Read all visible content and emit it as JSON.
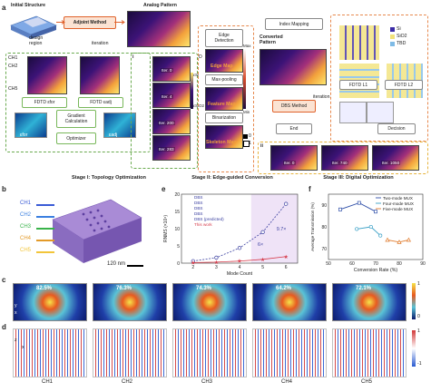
{
  "panel_a": {
    "letter": "a",
    "initial_structure": "Initial Structure",
    "design_region": "design\nregion",
    "adjoint_method": "Adjoint Method",
    "iteration": "iteration",
    "analog_pattern": "Analog Pattern",
    "ch_labels": [
      "CH1",
      "CH2",
      "CH5"
    ],
    "fdtd_for": "FDTD εfor",
    "fdtd_adj": "FDTD εadj",
    "gradient": "Gradient\nCalculation",
    "optimizer": "Optimizer",
    "eps_for": "εfor",
    "eps_adj": "εadj",
    "iter_labels": [
      "Iter. 0",
      "Iter. 4",
      "Iter. 200",
      "Iter. 283"
    ],
    "colorbar_top": "εSi",
    "colorbar_bot": "εSiO2",
    "edge_detection": "Edge\nDetection",
    "edge_map": "Edge Map",
    "max_pooling": "Max-pooling",
    "feature_map": "Feature Map",
    "binarization": "Binarization",
    "skeleton_map": "Skeleton Map",
    "max": "Max",
    "min": "Min",
    "d_label": "D",
    "bin_0": "0",
    "bin_1": "1",
    "index_mapping": "Index Mapping",
    "converted_pattern": "Converted\nPattern",
    "legend": [
      "Si",
      "SiO2",
      "TBD"
    ],
    "legend_colors": [
      "#3b2ba6",
      "#f2e27a",
      "#7fbbe6"
    ],
    "dbs_method": "DBS Method",
    "end": "End",
    "fdtd_l1": "FDTD L1",
    "fdtd_l2": "FDTD L2",
    "decision": "Decision",
    "sub_i": "i",
    "sub_ii": "ii",
    "iter_dbs": [
      "Iter. 0",
      "Iter. 740",
      "Iter. 1050"
    ],
    "stage1": "Stage I: Topology Optimization",
    "stage2": "Stage II: Edge-guided Conversion",
    "stage3": "Stage III: Digital Optimization"
  },
  "panel_b": {
    "letter": "b",
    "channels": [
      "CH1",
      "CH2",
      "CH3",
      "CH4",
      "CH5"
    ],
    "channel_colors": [
      "#3a5bd6",
      "#3a7fe0",
      "#39b34a",
      "#e39a28",
      "#f2c53a"
    ],
    "scale": "120 nm"
  },
  "panel_e": {
    "letter": "e",
    "chart_data": {
      "type": "scatter",
      "xlabel": "Mode Count",
      "ylabel": "RNMS (×10⁴)",
      "xlim": [
        1.5,
        6.5
      ],
      "ylim": [
        0,
        20
      ],
      "x_ticks": [
        "2",
        "3",
        "4",
        "5",
        "6"
      ],
      "y_ticks": [
        "0",
        "5",
        "10",
        "15",
        "20"
      ],
      "series": [
        {
          "name": "DBS",
          "x": [
            2,
            3,
            4,
            5,
            6
          ],
          "values": [
            0.6,
            1.6,
            4.4,
            9.0,
            17.2
          ],
          "style": "dashed-line-circle"
        },
        {
          "name": "This work",
          "x": [
            2,
            3,
            4,
            5,
            6
          ],
          "values": [
            0.15,
            0.3,
            0.6,
            1.1,
            1.9
          ],
          "style": "star"
        }
      ],
      "legend": [
        "DBS",
        "DBS",
        "DBS",
        "DBS",
        "DBS (predicted)",
        "This work"
      ],
      "annotations": [
        "6×",
        "9.7×"
      ]
    }
  },
  "panel_f": {
    "letter": "f",
    "chart_data": {
      "type": "line",
      "xlabel": "Conversion Rate (%)",
      "ylabel": "Average Transmission (%)",
      "xlim": [
        50,
        90
      ],
      "ylim": [
        65,
        95
      ],
      "x_ticks": [
        "50",
        "60",
        "70",
        "80",
        "90"
      ],
      "y_ticks": [
        "70",
        "80",
        "90"
      ],
      "series": [
        {
          "name": "Two-mode MUX",
          "x": [
            55,
            63,
            70
          ],
          "values": [
            88,
            91,
            87
          ],
          "color": "#2f4fa8"
        },
        {
          "name": "Four-mode MUX",
          "x": [
            62,
            68,
            72
          ],
          "values": [
            79,
            80,
            76
          ],
          "color": "#3aa0c6"
        },
        {
          "name": "Five-mode MUX",
          "x": [
            75,
            80,
            84
          ],
          "values": [
            74,
            73,
            74
          ],
          "color": "#e07a2b"
        }
      ]
    }
  },
  "panel_c": {
    "letter": "c",
    "percents": [
      "82.5%",
      "76.3%",
      "74.3%",
      "64.2%",
      "72.1%"
    ],
    "colorbar_top": "1",
    "colorbar_bot": "0",
    "axis_x": "x",
    "axis_y": "y"
  },
  "panel_d": {
    "letter": "d",
    "channels": [
      "CH1",
      "CH2",
      "CH3",
      "CH4",
      "CH5"
    ],
    "colorbar_top": "1",
    "colorbar_bot": "-1",
    "axis_z": "z",
    "axis_x": "x"
  }
}
